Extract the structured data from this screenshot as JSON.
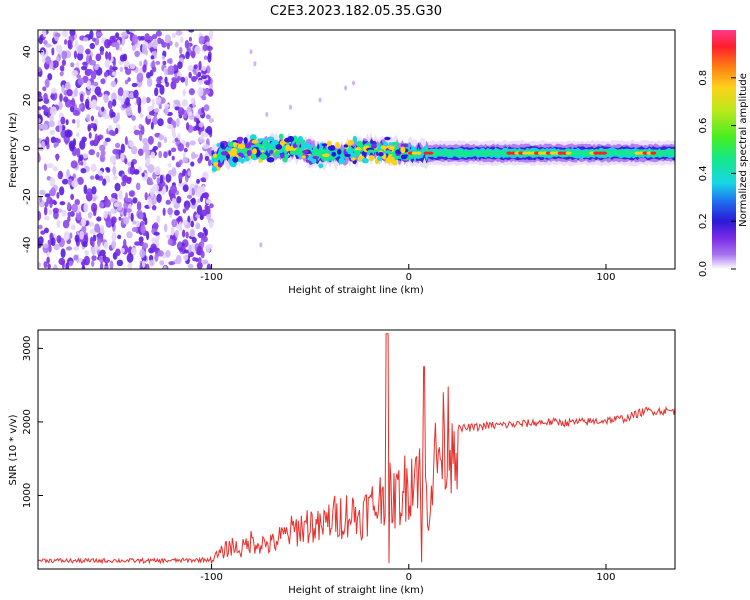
{
  "title": "C2E3.2023.182.05.35.G30",
  "colors": {
    "snr_line": "#e8302c",
    "background_scatter": "#7b2fe0",
    "colorscale": [
      "#ffffff",
      "#a875f0",
      "#7a2be6",
      "#2a1ad8",
      "#1f6cf0",
      "#19d7e6",
      "#14e88a",
      "#44ee22",
      "#b8e81a",
      "#ffd21a",
      "#ff7a14",
      "#ff1e2a",
      "#ff3a8a"
    ]
  },
  "chart_data": [
    {
      "type": "heatmap",
      "title": "C2E3.2023.182.05.35.G30",
      "xlabel": "Height of straight line (km)",
      "ylabel": "Frequency (Hz)",
      "xlim": [
        -188,
        135
      ],
      "ylim": [
        -50,
        49
      ],
      "xticks": [
        -100,
        0,
        100
      ],
      "yticks": [
        -40,
        -20,
        0,
        20,
        40
      ],
      "grid": false,
      "colorbar": {
        "label": "Normalized spectral amplitude",
        "range": [
          0.0,
          1.0
        ],
        "ticks": [
          0.0,
          0.2,
          0.4,
          0.6,
          0.8
        ]
      },
      "regions": [
        {
          "name": "noise",
          "x_range": [
            -188,
            -100
          ],
          "freq_range": [
            -50,
            49
          ],
          "amplitude": 0.25
        },
        {
          "name": "signal_track",
          "x_range": [
            -100,
            135
          ],
          "center_freq_hz": [
            [
              -100,
              -4
            ],
            [
              -80,
              0
            ],
            [
              -60,
              0
            ],
            [
              -40,
              -3
            ],
            [
              -20,
              0
            ],
            [
              0,
              -2
            ],
            [
              50,
              -2
            ],
            [
              100,
              -2
            ],
            [
              135,
              -2
            ]
          ],
          "peak_amplitude": 0.9
        }
      ]
    },
    {
      "type": "line",
      "title": "",
      "xlabel": "Height of straight line (km)",
      "ylabel": "SNR (10 * v/v)",
      "xlim": [
        -188,
        135
      ],
      "ylim": [
        0,
        3250
      ],
      "xticks": [
        -100,
        0,
        100
      ],
      "yticks": [
        1000,
        2000,
        3000
      ],
      "grid": false,
      "series": [
        {
          "x": [
            -188,
            -170,
            -150,
            -130,
            -110,
            -100,
            -95,
            -90,
            -85,
            -80,
            -75,
            -70,
            -65,
            -60,
            -55,
            -50,
            -45,
            -40,
            -35,
            -30,
            -25,
            -20,
            -15,
            -12,
            -10,
            -8,
            -6,
            -4,
            -2,
            0,
            2,
            4,
            6,
            8,
            10,
            12,
            14,
            16,
            18,
            20,
            25,
            30,
            35,
            40,
            50,
            60,
            70,
            80,
            90,
            100,
            110,
            120,
            135
          ],
          "y": [
            120,
            110,
            115,
            110,
            120,
            130,
            220,
            320,
            260,
            380,
            350,
            330,
            420,
            500,
            560,
            620,
            540,
            680,
            720,
            760,
            700,
            820,
            900,
            1100,
            1200,
            900,
            1000,
            1000,
            1100,
            1200,
            1300,
            1400,
            1300,
            1100,
            850,
            1300,
            1500,
            1600,
            1700,
            1850,
            1900,
            1920,
            1930,
            1950,
            1960,
            1980,
            2000,
            1990,
            2000,
            2020,
            2050,
            2150,
            2150
          ]
        }
      ]
    }
  ]
}
